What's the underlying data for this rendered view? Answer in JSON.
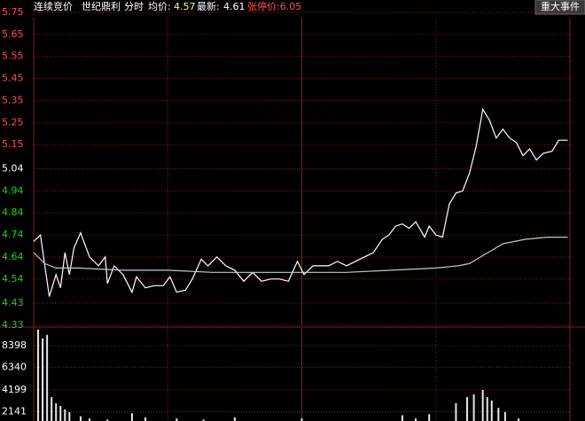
{
  "header": {
    "mode": "连续竞价",
    "stock": "世纪鼎利",
    "view": "分时",
    "avg_label": "均价:",
    "avg_price": 4.57,
    "last_label": "最新:",
    "last_price": 4.61,
    "limit_up": "张停价:6.05",
    "button": "重大事件"
  },
  "chart_data": [
    {
      "type": "line",
      "xlim": [
        0,
        240
      ],
      "xticks": [
        60,
        120,
        180
      ],
      "ylim": [
        4.33,
        5.75
      ],
      "yticks": [
        5.75,
        5.65,
        5.55,
        5.45,
        5.35,
        5.25,
        5.15,
        5.04,
        4.94,
        4.84,
        4.74,
        4.64,
        4.54,
        4.43,
        4.33
      ],
      "tick_colors": [
        "#ff5050",
        "#ff5050",
        "#ff5050",
        "#ff5050",
        "#ff5050",
        "#ff5050",
        "#ff5050",
        "#ffffff",
        "#00e600",
        "#00e600",
        "#00e600",
        "#00e600",
        "#00e600",
        "#00e600",
        "#00e600"
      ],
      "grid": true,
      "series": [
        {
          "color": "#ffffff",
          "x": [
            0,
            3,
            7,
            10,
            12,
            14,
            16,
            18,
            21,
            25,
            29,
            32,
            33,
            36,
            40,
            44,
            46,
            50,
            54,
            58,
            61,
            64,
            68,
            71,
            75,
            78,
            82,
            86,
            90,
            94,
            98,
            102,
            106,
            110,
            114,
            118,
            121,
            125,
            129,
            132,
            136,
            140,
            144,
            148,
            152,
            156,
            159,
            162,
            165,
            168,
            171,
            175,
            177,
            180,
            183,
            186,
            189,
            192,
            195,
            198,
            201,
            204,
            207,
            210,
            213,
            216,
            219,
            222,
            225,
            228,
            232,
            235,
            239
          ],
          "values": [
            4.71,
            4.74,
            4.46,
            4.56,
            4.5,
            4.66,
            4.56,
            4.68,
            4.75,
            4.64,
            4.6,
            4.64,
            4.52,
            4.6,
            4.56,
            4.48,
            4.55,
            4.5,
            4.51,
            4.51,
            4.55,
            4.48,
            4.49,
            4.54,
            4.63,
            4.6,
            4.64,
            4.6,
            4.58,
            4.53,
            4.57,
            4.53,
            4.54,
            4.54,
            4.53,
            4.62,
            4.56,
            4.6,
            4.6,
            4.6,
            4.62,
            4.6,
            4.62,
            4.64,
            4.66,
            4.72,
            4.74,
            4.78,
            4.79,
            4.77,
            4.8,
            4.73,
            4.78,
            4.74,
            4.73,
            4.88,
            4.93,
            4.94,
            5.02,
            5.14,
            5.31,
            5.26,
            5.18,
            5.22,
            5.18,
            5.16,
            5.1,
            5.13,
            5.08,
            5.11,
            5.12,
            5.17,
            5.17
          ]
        },
        {
          "color": "#c8c8c8",
          "x": [
            0,
            5,
            10,
            20,
            40,
            60,
            80,
            100,
            120,
            140,
            160,
            180,
            190,
            195,
            200,
            205,
            210,
            220,
            230,
            239
          ],
          "values": [
            4.66,
            4.61,
            4.59,
            4.59,
            4.58,
            4.58,
            4.57,
            4.57,
            4.57,
            4.57,
            4.58,
            4.59,
            4.6,
            4.61,
            4.64,
            4.67,
            4.7,
            4.72,
            4.73,
            4.73
          ]
        }
      ]
    },
    {
      "type": "bar",
      "xlim": [
        0,
        240
      ],
      "xticks": [
        60,
        120,
        180
      ],
      "ylim": [
        0,
        10060
      ],
      "yticks": [
        8398,
        6340,
        4199,
        2141
      ],
      "tick_colors": [
        "#ffffff",
        "#ffffff",
        "#ffffff",
        "#ffffff"
      ],
      "grid": true,
      "series": [
        {
          "color": "#e6e6e6",
          "x": [
            2,
            4,
            6,
            8,
            10,
            12,
            14,
            16,
            21,
            25,
            33,
            44,
            50,
            64,
            76,
            90,
            120,
            165,
            171,
            177,
            189,
            194,
            197,
            201,
            203,
            205,
            208,
            211,
            217
          ],
          "values": [
            9900,
            9060,
            9400,
            3520,
            2930,
            2680,
            2350,
            2100,
            1700,
            1500,
            1400,
            2000,
            1600,
            1500,
            1400,
            1600,
            1500,
            1800,
            1500,
            1900,
            2930,
            3520,
            3770,
            4190,
            3520,
            3200,
            2500,
            2100,
            1500
          ]
        }
      ]
    }
  ]
}
